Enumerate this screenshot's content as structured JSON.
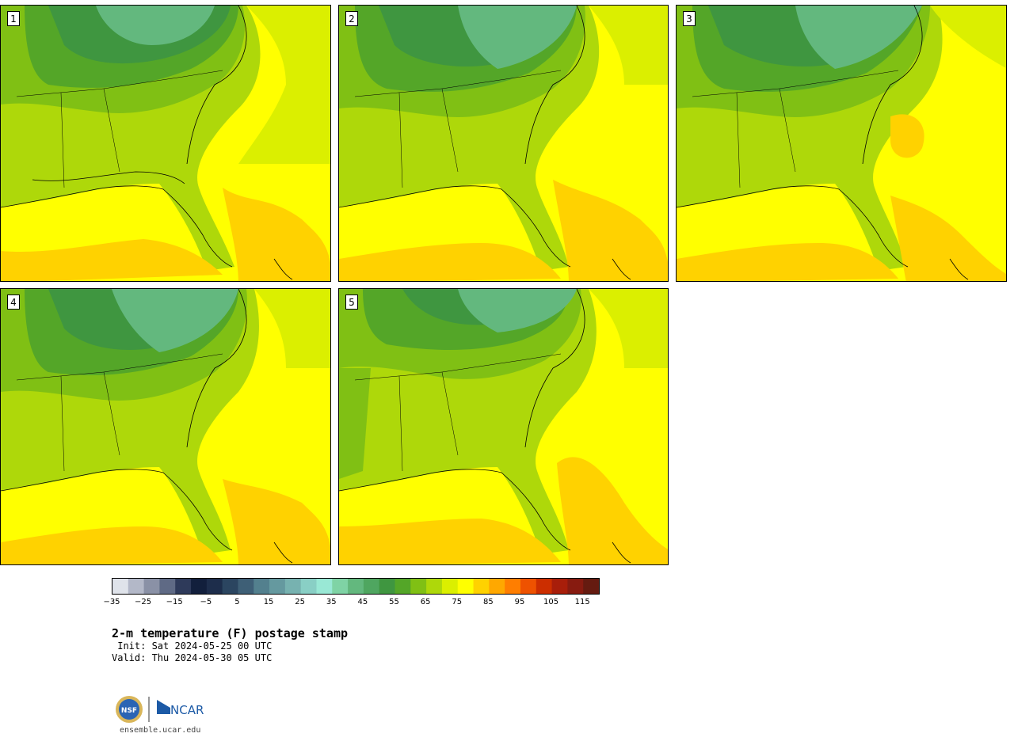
{
  "panels": [
    {
      "label": "1"
    },
    {
      "label": "2"
    },
    {
      "label": "3"
    },
    {
      "label": "4"
    },
    {
      "label": "5"
    }
  ],
  "title": "2-m temperature (F) postage stamp",
  "init": " Init: Sat 2024-05-25 00 UTC",
  "valid": "Valid: Thu 2024-05-30 05 UTC",
  "colorbar": {
    "ticks": [
      "−35",
      "−25",
      "−15",
      "−5",
      "5",
      "15",
      "25",
      "35",
      "45",
      "55",
      "65",
      "75",
      "85",
      "95",
      "105",
      "115"
    ],
    "colors": [
      "#dfe3ea",
      "#b3b8c8",
      "#8a91a6",
      "#5f6a85",
      "#2e3a5a",
      "#121f3c",
      "#1d2d4b",
      "#2b4560",
      "#3e5f76",
      "#53808e",
      "#65999f",
      "#77b2b0",
      "#89cfc5",
      "#99e8d5",
      "#7fd3a5",
      "#63b87e",
      "#4fa660",
      "#3f9640",
      "#54a628",
      "#80c014",
      "#aed80a",
      "#dbef00",
      "#ffff00",
      "#ffd200",
      "#ffa800",
      "#ff7e00",
      "#ee5200",
      "#cc2e00",
      "#a81e0a",
      "#871b10",
      "#651b10"
    ]
  },
  "logo": {
    "nsf": "NSF",
    "ncar": "NCAR"
  },
  "footer": "ensemble.ucar.edu"
}
